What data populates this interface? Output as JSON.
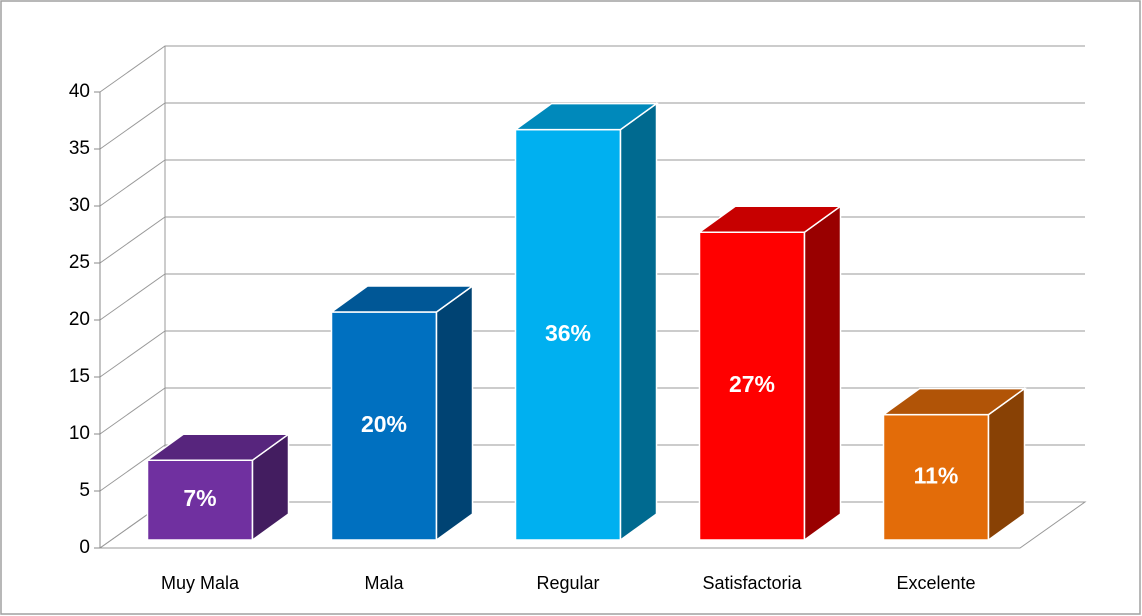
{
  "chart_data": {
    "type": "bar3d",
    "categories": [
      "Muy Mala",
      "Mala",
      "Regular",
      "Satisfactoria",
      "Excelente"
    ],
    "values": [
      7,
      20,
      36,
      27,
      11
    ],
    "value_labels": [
      "7%",
      "20%",
      "36%",
      "27%",
      "11%"
    ],
    "colors": [
      "#7030a0",
      "#0070c0",
      "#00b0f0",
      "#ff0000",
      "#e36c09"
    ],
    "ylim": [
      0,
      40
    ],
    "yticks": [
      0,
      5,
      10,
      15,
      20,
      25,
      30,
      35,
      40
    ],
    "grid": true
  }
}
